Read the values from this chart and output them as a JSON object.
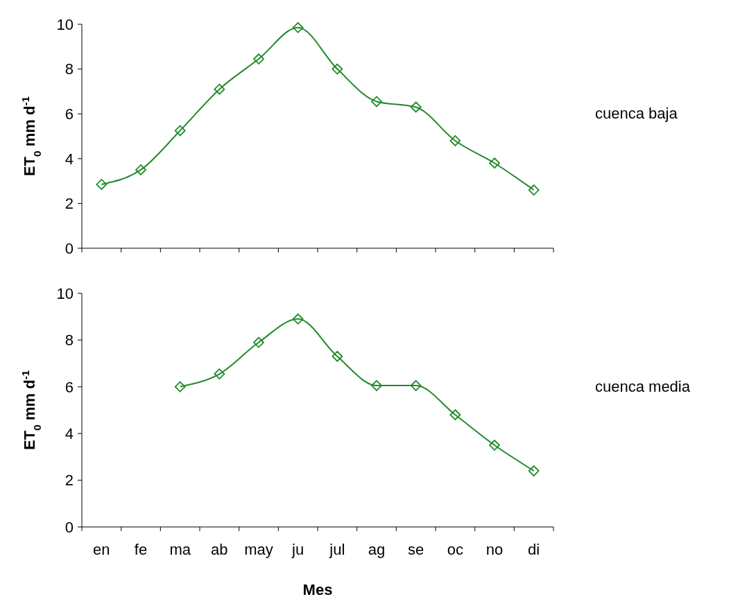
{
  "chart_data": [
    {
      "type": "line",
      "categories": [
        null,
        null,
        null,
        null,
        null,
        null,
        null,
        null,
        null,
        null,
        null,
        null
      ],
      "ylabel": "ET$_{0}$ mm d$^{-1}$",
      "ylim": [
        0,
        10
      ],
      "yticks": [
        0,
        2,
        4,
        6,
        8,
        10
      ],
      "tick_labels": "y",
      "grid": false,
      "legend": "right",
      "marker": "diamond",
      "line_style": "solid",
      "series": [
        {
          "name": "cuenca baja",
          "color": "#1f8a2a",
          "values": [
            2.85,
            3.5,
            5.25,
            7.1,
            8.45,
            9.85,
            8.0,
            6.55,
            6.3,
            4.8,
            3.8,
            2.6
          ]
        }
      ]
    },
    {
      "type": "line",
      "categories": [
        "en",
        "fe",
        "ma",
        "ab",
        "may",
        "ju",
        "jul",
        "ag",
        "se",
        "oc",
        "no",
        "di"
      ],
      "xlabel": "Mes",
      "ylabel": "ET$_{0}$ mm d$^{-1}$",
      "ylim": [
        0,
        10
      ],
      "yticks": [
        0,
        2,
        4,
        6,
        8,
        10
      ],
      "grid": false,
      "legend": "right",
      "marker": "diamond",
      "line_style": "solid",
      "series": [
        {
          "name": "cuenca media",
          "color": "#1f8a2a",
          "values": [
            null,
            null,
            6.0,
            6.55,
            7.9,
            8.9,
            7.3,
            6.05,
            6.05,
            4.8,
            3.5,
            2.4
          ]
        }
      ]
    }
  ]
}
